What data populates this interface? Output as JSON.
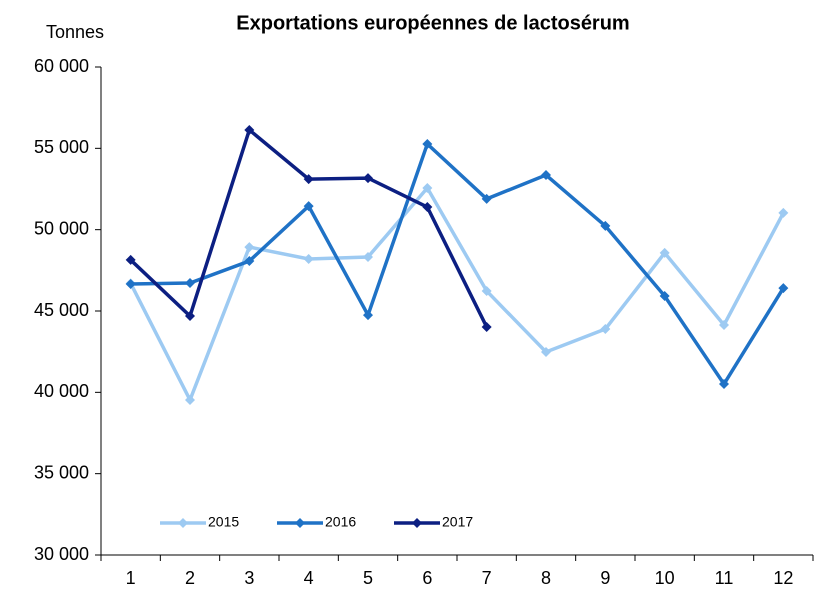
{
  "chart_data": {
    "type": "line",
    "title": "Exportations européennes de lactosérum",
    "y_label": "Tonnes",
    "categories": [
      "1",
      "2",
      "3",
      "4",
      "5",
      "6",
      "7",
      "8",
      "9",
      "10",
      "11",
      "12"
    ],
    "series": [
      {
        "name": "2015",
        "color": "#9dcaf2",
        "values": [
          46700,
          39530,
          48930,
          48200,
          48320,
          52560,
          46230,
          42480,
          43890,
          48570,
          44140,
          51030
        ]
      },
      {
        "name": "2016",
        "color": "#1f72c6",
        "values": [
          46660,
          46720,
          48070,
          51450,
          44750,
          55270,
          51890,
          53360,
          50230,
          45920,
          40510,
          46410
        ]
      },
      {
        "name": "2017",
        "color": "#0c1f82",
        "values": [
          48140,
          44690,
          56130,
          53110,
          53170,
          51390,
          44020,
          null,
          null,
          null,
          null,
          null
        ]
      }
    ],
    "ylim": [
      30000,
      60000
    ],
    "yticks": [
      {
        "value": 30000,
        "label": "30 000"
      },
      {
        "value": 35000,
        "label": "35 000"
      },
      {
        "value": 40000,
        "label": "40 000"
      },
      {
        "value": 45000,
        "label": "45 000"
      },
      {
        "value": 50000,
        "label": "50 000"
      },
      {
        "value": 55000,
        "label": "55 000"
      },
      {
        "value": 60000,
        "label": "60 000"
      }
    ],
    "grid": false,
    "legend": "bottom-left"
  }
}
